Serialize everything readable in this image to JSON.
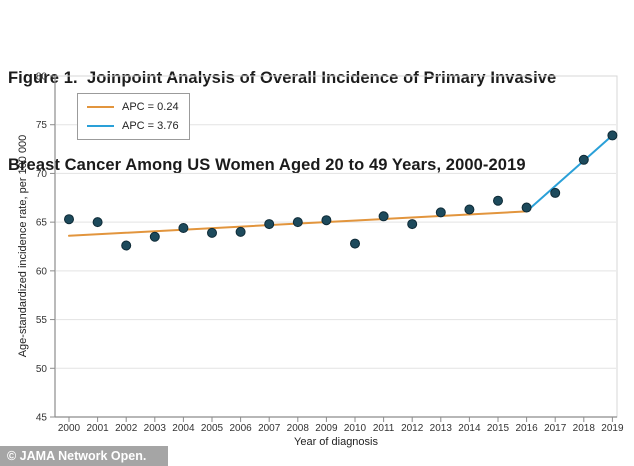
{
  "figure": {
    "title_line1": "Figure 1.  Joinpoint Analysis of Overall Incidence of Primary Invasive",
    "title_line2": "Breast Cancer Among US Women Aged 20 to 49 Years, 2000-2019"
  },
  "footer": {
    "credit": "© JAMA Network Open."
  },
  "colors": {
    "title_text": "#1B1B1B",
    "axis_line": "#8C8C8C",
    "grid_line": "#E3E3E3",
    "tick_text": "#333333",
    "point": "#1D4A5C",
    "trend_orange": "#E2953D",
    "trend_blue": "#2AA0D8",
    "footer_bg": "#A5A5A5",
    "footer_text": "#FFFFFF"
  },
  "chart_data": {
    "type": "scatter",
    "title": "",
    "xlabel": "Year of diagnosis",
    "ylabel": "Age-standardized incidence rate, per 100 000",
    "x": [
      2000,
      2001,
      2002,
      2003,
      2004,
      2005,
      2006,
      2007,
      2008,
      2009,
      2010,
      2011,
      2012,
      2013,
      2014,
      2015,
      2016,
      2017,
      2018,
      2019
    ],
    "points": [
      65.3,
      65.0,
      62.6,
      63.5,
      64.4,
      63.9,
      64.0,
      64.8,
      65.0,
      65.2,
      62.8,
      65.6,
      64.8,
      66.0,
      66.3,
      67.2,
      66.5,
      68.0,
      71.4,
      73.9
    ],
    "ylim": [
      45,
      80
    ],
    "yticks": [
      45,
      50,
      55,
      60,
      65,
      70,
      75,
      80
    ],
    "grid": "horizontal",
    "legend_position": "top-left-inside",
    "legend": [
      {
        "label": "APC = 0.24",
        "color": "#E2953D"
      },
      {
        "label": "APC = 3.76",
        "color": "#2AA0D8"
      }
    ],
    "trend_segments": [
      {
        "name": "APC = 0.24",
        "color": "#E2953D",
        "x": [
          2000,
          2016
        ],
        "y": [
          63.6,
          66.1
        ]
      },
      {
        "name": "APC = 3.76",
        "color": "#2AA0D8",
        "x": [
          2016,
          2019
        ],
        "y": [
          66.1,
          73.9
        ]
      }
    ]
  }
}
